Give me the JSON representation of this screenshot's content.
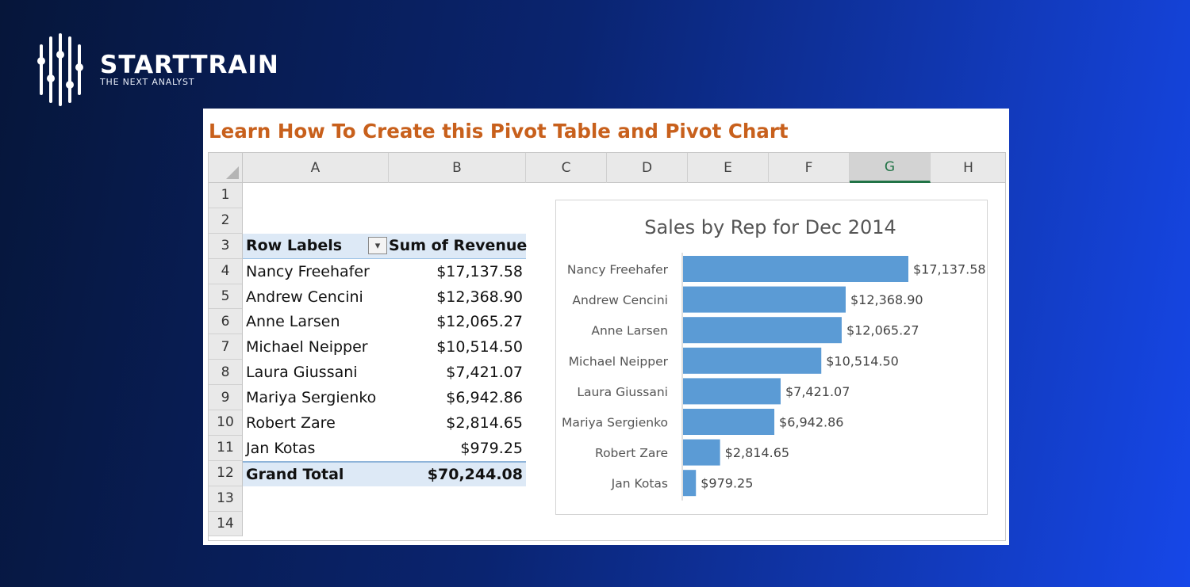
{
  "brand": {
    "name": "STARTTRAIN",
    "tagline": "THE NEXT ANALYST"
  },
  "title": "Learn How To Create this Pivot Table and Pivot Chart",
  "sheet": {
    "columns": [
      "A",
      "B",
      "C",
      "D",
      "E",
      "F",
      "G",
      "H"
    ],
    "selected_column": "G",
    "rows": [
      "1",
      "2",
      "3",
      "4",
      "5",
      "6",
      "7",
      "8",
      "9",
      "10",
      "11",
      "12",
      "13",
      "14"
    ]
  },
  "pivot": {
    "header_label": "Row Labels",
    "header_value": "Sum of Revenue",
    "filter_icon": "sort-filter-icon",
    "items": [
      {
        "label": "Nancy Freehafer",
        "value": "$17,137.58"
      },
      {
        "label": "Andrew Cencini",
        "value": "$12,368.90"
      },
      {
        "label": "Anne Larsen",
        "value": "$12,065.27"
      },
      {
        "label": "Michael Neipper",
        "value": "$10,514.50"
      },
      {
        "label": "Laura Giussani",
        "value": "$7,421.07"
      },
      {
        "label": "Mariya Sergienko",
        "value": "$6,942.86"
      },
      {
        "label": "Robert Zare",
        "value": "$2,814.65"
      },
      {
        "label": "Jan Kotas",
        "value": "$979.25"
      }
    ],
    "total_label": "Grand Total",
    "total_value": "$70,244.08"
  },
  "colors": {
    "bar": "#5b9bd5",
    "title": "#c8601c",
    "accent": "#217346"
  },
  "chart_data": {
    "type": "bar",
    "orientation": "horizontal",
    "title": "Sales by Rep for Dec 2014",
    "categories": [
      "Nancy Freehafer",
      "Andrew Cencini",
      "Anne Larsen",
      "Michael Neipper",
      "Laura Giussani",
      "Mariya Sergienko",
      "Robert Zare",
      "Jan Kotas"
    ],
    "values": [
      17137.58,
      12368.9,
      12065.27,
      10514.5,
      7421.07,
      6942.86,
      2814.65,
      979.25
    ],
    "data_labels": [
      "$17,137.58",
      "$12,368.90",
      "$12,065.27",
      "$10,514.50",
      "$7,421.07",
      "$6,942.86",
      "$2,814.65",
      "$979.25"
    ],
    "xlim": [
      0,
      17137.58
    ],
    "grid": false,
    "legend": "none"
  }
}
